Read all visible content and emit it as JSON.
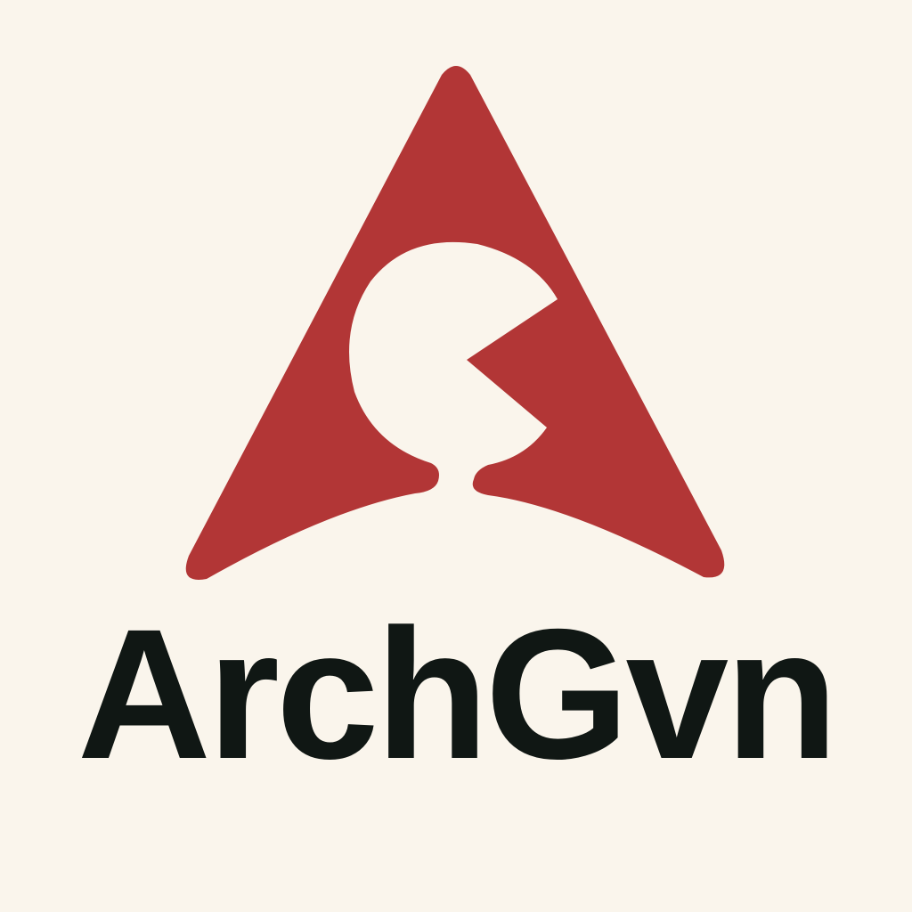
{
  "brand": {
    "name": "ArchGvn"
  },
  "logo": {
    "icon": "red-triangle-with-person-silhouette-icon"
  },
  "colors": {
    "background": "#FAF5EC",
    "accent": "#B23636",
    "text": "#101714"
  }
}
